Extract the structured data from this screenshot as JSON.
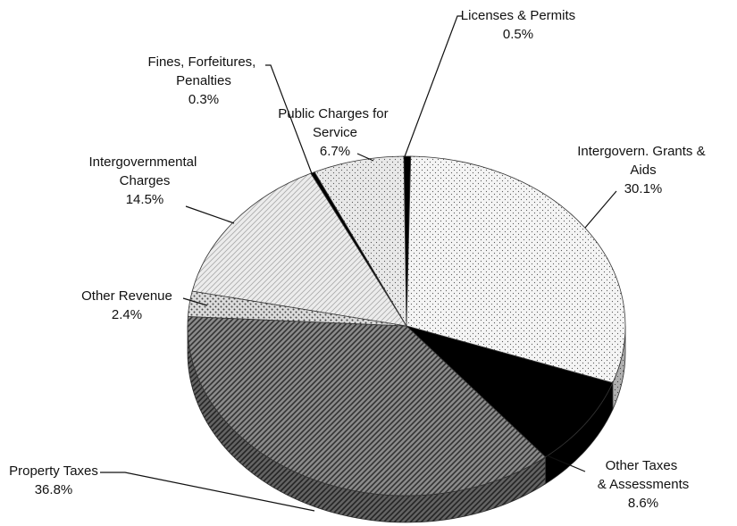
{
  "chart_data": {
    "type": "pie",
    "categories": [
      "Licenses & Permits",
      "Intergovern. Grants & Aids",
      "Other Taxes & Assessments",
      "Property Taxes",
      "Other Revenue",
      "Intergovernmental Charges",
      "Fines, Forfeitures, Penalties",
      "Public Charges for Service"
    ],
    "values": [
      0.5,
      30.1,
      8.6,
      36.8,
      2.4,
      14.5,
      0.3,
      6.7
    ],
    "value_labels": [
      "0.5%",
      "30.1%",
      "8.6%",
      "36.8%",
      "2.4%",
      "14.5%",
      "0.3%",
      "6.7%"
    ],
    "colors": [
      "#000000",
      "#f4f4f4",
      "#000000",
      "#8a8a8a",
      "#dcdcdc",
      "#ececec",
      "#000000",
      "#e8e8e8"
    ]
  }
}
